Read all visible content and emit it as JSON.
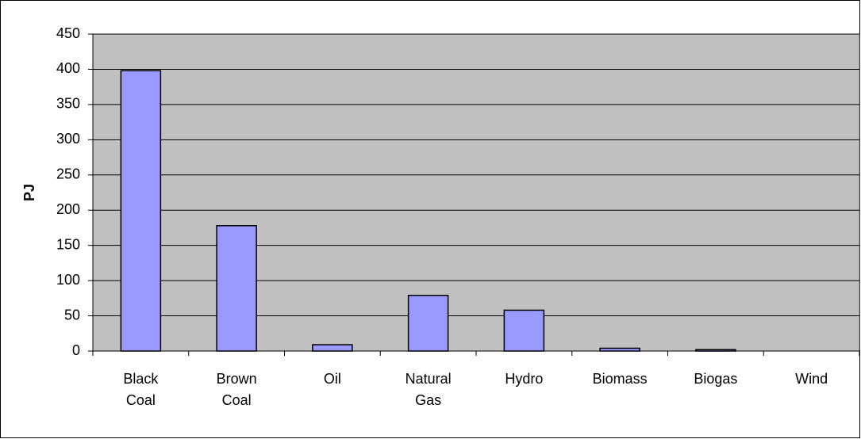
{
  "chart_data": {
    "type": "bar",
    "y_label": "PJ",
    "categories": [
      "Black Coal",
      "Brown Coal",
      "Oil",
      "Natural Gas",
      "Hydro",
      "Biomass",
      "Biogas",
      "Wind"
    ],
    "values": [
      398,
      178,
      9,
      79,
      58,
      4,
      2,
      0
    ],
    "color": "#9999ff",
    "ylim": [
      0,
      450
    ],
    "yticks": [
      0,
      50,
      100,
      150,
      200,
      250,
      300,
      350,
      400,
      450
    ],
    "grid": true
  }
}
